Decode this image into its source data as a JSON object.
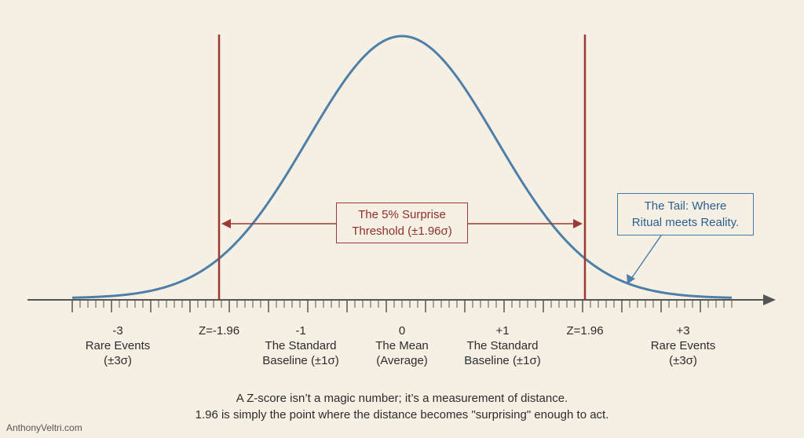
{
  "threshold_box": {
    "line1": "The 5% Surprise",
    "line2": "Threshold (±1.96σ)"
  },
  "tail_box": {
    "line1": "The Tail: Where",
    "line2": "Ritual meets Reality."
  },
  "axis_labels": [
    {
      "number": "-3",
      "desc1": "Rare Events",
      "desc2": "(±3σ)"
    },
    {
      "number": "Z=-1.96",
      "desc1": "",
      "desc2": ""
    },
    {
      "number": "-1",
      "desc1": "The Standard",
      "desc2": "Baseline (±1σ)"
    },
    {
      "number": "0",
      "desc1": "The Mean",
      "desc2": "(Average)"
    },
    {
      "number": "+1",
      "desc1": "The Standard",
      "desc2": "Baseline (±1σ)"
    },
    {
      "number": "Z=1.96",
      "desc1": "",
      "desc2": ""
    },
    {
      "number": "+3",
      "desc1": "Rare Events",
      "desc2": "(±3σ)"
    }
  ],
  "caption": {
    "line1": "A Z-score isn’t a magic number; it’s a measurement of distance.",
    "line2": "1.96 is simply the point where the distance becomes \"surprising\" enough to act."
  },
  "watermark": "AnthonyVeltri.com",
  "colors": {
    "curve": "#4e7fa8",
    "threshold": "#9b3a34",
    "axis": "#555555",
    "background": "#f6f0e4"
  }
}
